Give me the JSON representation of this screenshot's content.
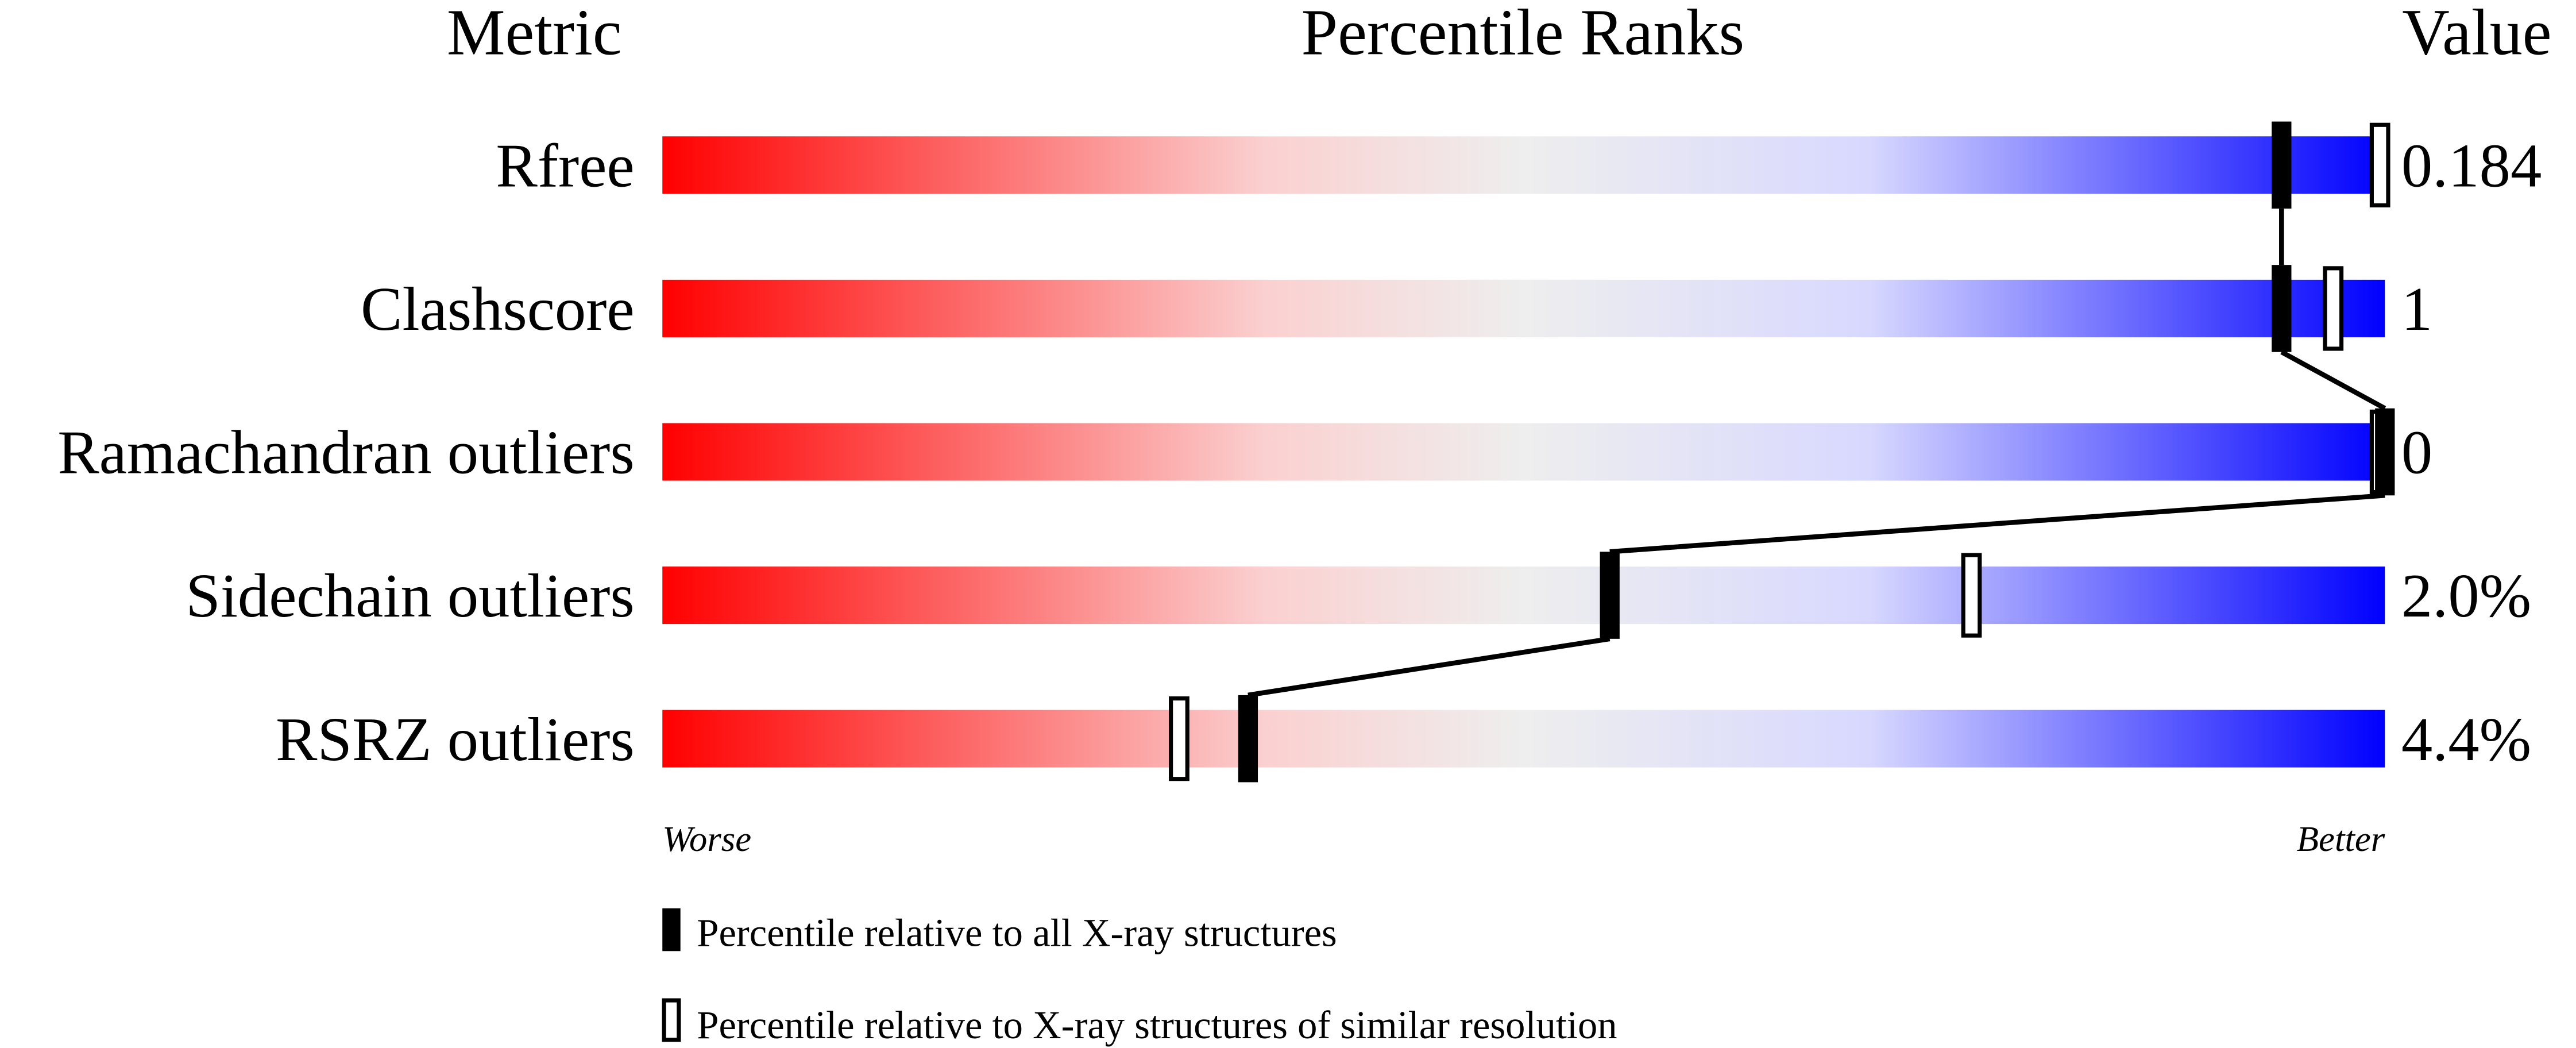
{
  "chart_data": {
    "type": "bar",
    "headers": {
      "metric": "Metric",
      "ranks": "Percentile Ranks",
      "value": "Value"
    },
    "xlim": [
      0,
      100
    ],
    "axis_labels": {
      "left": "Worse",
      "right": "Better"
    },
    "gradient_colors": [
      "#ff0000",
      "#fbd0d0",
      "#eeeeee",
      "#d8d8ff",
      "#0000ff"
    ],
    "rows": [
      {
        "metric": "Rfree",
        "value": "0.184",
        "percentile_all": 94,
        "percentile_similar": 100
      },
      {
        "metric": "Clashscore",
        "value": "1",
        "percentile_all": 94,
        "percentile_similar": 97
      },
      {
        "metric": "Ramachandran outliers",
        "value": "0",
        "percentile_all": 100,
        "percentile_similar": 100
      },
      {
        "metric": "Sidechain outliers",
        "value": "2.0%",
        "percentile_all": 55,
        "percentile_similar": 76
      },
      {
        "metric": "RSRZ outliers",
        "value": "4.4%",
        "percentile_all": 34,
        "percentile_similar": 30
      }
    ],
    "legend": [
      {
        "marker": "filled",
        "label": "Percentile relative to all X-ray structures"
      },
      {
        "marker": "open",
        "label": "Percentile relative to X-ray structures of similar resolution"
      }
    ]
  }
}
